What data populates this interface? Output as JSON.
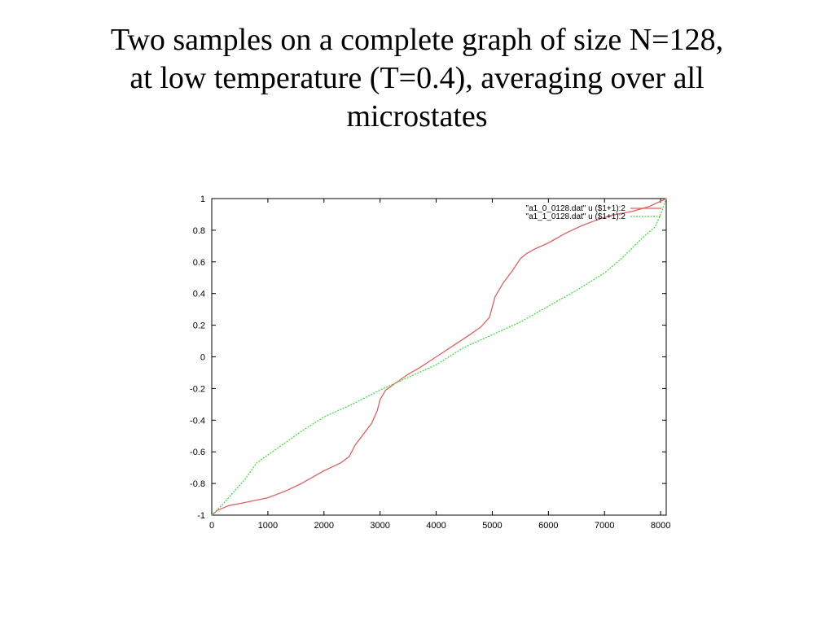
{
  "slide": {
    "title_lines": [
      "Two samples on a complete graph of size N=128,",
      "at low temperature (T=0.4), averaging over all",
      "microstates"
    ]
  },
  "chart_data": {
    "type": "line",
    "title": "",
    "xlabel": "",
    "ylabel": "",
    "xlim": [
      0,
      8100
    ],
    "ylim": [
      -1,
      1
    ],
    "xticks": [
      0,
      1000,
      2000,
      3000,
      4000,
      5000,
      6000,
      7000,
      8000
    ],
    "xtick_labels": [
      "0",
      "1000",
      "2000",
      "3000",
      "4000",
      "5000",
      "6000",
      "7000",
      "8000"
    ],
    "yticks": [
      -1,
      -0.8,
      -0.6,
      -0.4,
      -0.2,
      0,
      0.2,
      0.4,
      0.6,
      0.8,
      1
    ],
    "ytick_labels": [
      "-1",
      "-0.8",
      "-0.6",
      "-0.4",
      "-0.2",
      "0",
      "0.2",
      "0.4",
      "0.6",
      "0.8",
      "1"
    ],
    "grid": false,
    "legend_position": "top-right",
    "series": [
      {
        "name": "\"a1_0_0128.dat\" u ($1+1):2",
        "color": "#e06060",
        "style": "solid",
        "x": [
          0,
          100,
          300,
          600,
          1000,
          1300,
          1600,
          2000,
          2300,
          2450,
          2550,
          2700,
          2850,
          2950,
          3000,
          3100,
          3300,
          3500,
          3700,
          4000,
          4300,
          4600,
          4800,
          4950,
          5050,
          5200,
          5350,
          5500,
          5600,
          5750,
          6000,
          6300,
          6600,
          6900,
          7200,
          7500,
          7800,
          8100
        ],
        "y": [
          -1.0,
          -0.97,
          -0.94,
          -0.92,
          -0.89,
          -0.85,
          -0.8,
          -0.72,
          -0.67,
          -0.63,
          -0.56,
          -0.49,
          -0.42,
          -0.34,
          -0.27,
          -0.21,
          -0.16,
          -0.11,
          -0.07,
          0.0,
          0.07,
          0.14,
          0.19,
          0.25,
          0.38,
          0.47,
          0.54,
          0.62,
          0.65,
          0.68,
          0.72,
          0.78,
          0.83,
          0.87,
          0.9,
          0.92,
          0.95,
          1.0
        ]
      },
      {
        "name": "\"a1_1_0128.dat\" u ($1+1):2",
        "color": "#44dd44",
        "style": "dashed",
        "x": [
          0,
          200,
          400,
          600,
          800,
          1200,
          1600,
          2000,
          2500,
          3000,
          3500,
          4000,
          4500,
          5000,
          5500,
          6000,
          6500,
          7000,
          7300,
          7500,
          7700,
          7900,
          8000,
          8100
        ],
        "y": [
          -1.0,
          -0.93,
          -0.85,
          -0.77,
          -0.67,
          -0.57,
          -0.47,
          -0.38,
          -0.3,
          -0.21,
          -0.13,
          -0.05,
          0.06,
          0.14,
          0.22,
          0.32,
          0.42,
          0.53,
          0.62,
          0.69,
          0.76,
          0.82,
          0.9,
          1.0
        ]
      }
    ]
  }
}
